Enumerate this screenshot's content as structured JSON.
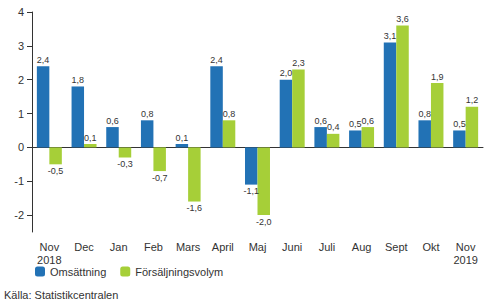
{
  "chart_data": {
    "type": "bar",
    "categories": [
      "Nov\n2018",
      "Dec",
      "Jan",
      "Feb",
      "Mars",
      "April",
      "Maj",
      "Juni",
      "Juli",
      "Aug",
      "Sept",
      "Okt",
      "Nov\n2019"
    ],
    "series": [
      {
        "name": "Omsättning",
        "color": "#2272b5",
        "values": [
          2.4,
          1.8,
          0.6,
          0.8,
          0.1,
          2.4,
          -1.1,
          2.0,
          0.6,
          0.5,
          3.1,
          0.8,
          0.5
        ],
        "value_labels": [
          "2,4",
          "1,8",
          "0,6",
          "0,8",
          "0,1",
          "2,4",
          "-1,1",
          "2,0",
          "0,6",
          "0,5",
          "3,1",
          "0,8",
          "0,5"
        ]
      },
      {
        "name": "Försäljningsvolym",
        "color": "#a6cf38",
        "values": [
          -0.5,
          0.1,
          -0.3,
          -0.7,
          -1.6,
          0.8,
          -2.0,
          2.3,
          0.4,
          0.6,
          3.6,
          1.9,
          1.2
        ],
        "value_labels": [
          "-0,5",
          "0,1",
          "-0,3",
          "-0,7",
          "-1,6",
          "0,8",
          "-2,0",
          "2,3",
          "0,4",
          "0,6",
          "3,6",
          "1,9",
          "1,2"
        ]
      }
    ],
    "ylim": [
      -2.5,
      4
    ],
    "yticks": [
      -2,
      -1,
      0,
      1,
      2,
      3,
      4
    ],
    "grid": false,
    "legend": "lower left",
    "data_labels": true,
    "annotations": [
      "Källa: Statistikcentralen"
    ]
  }
}
